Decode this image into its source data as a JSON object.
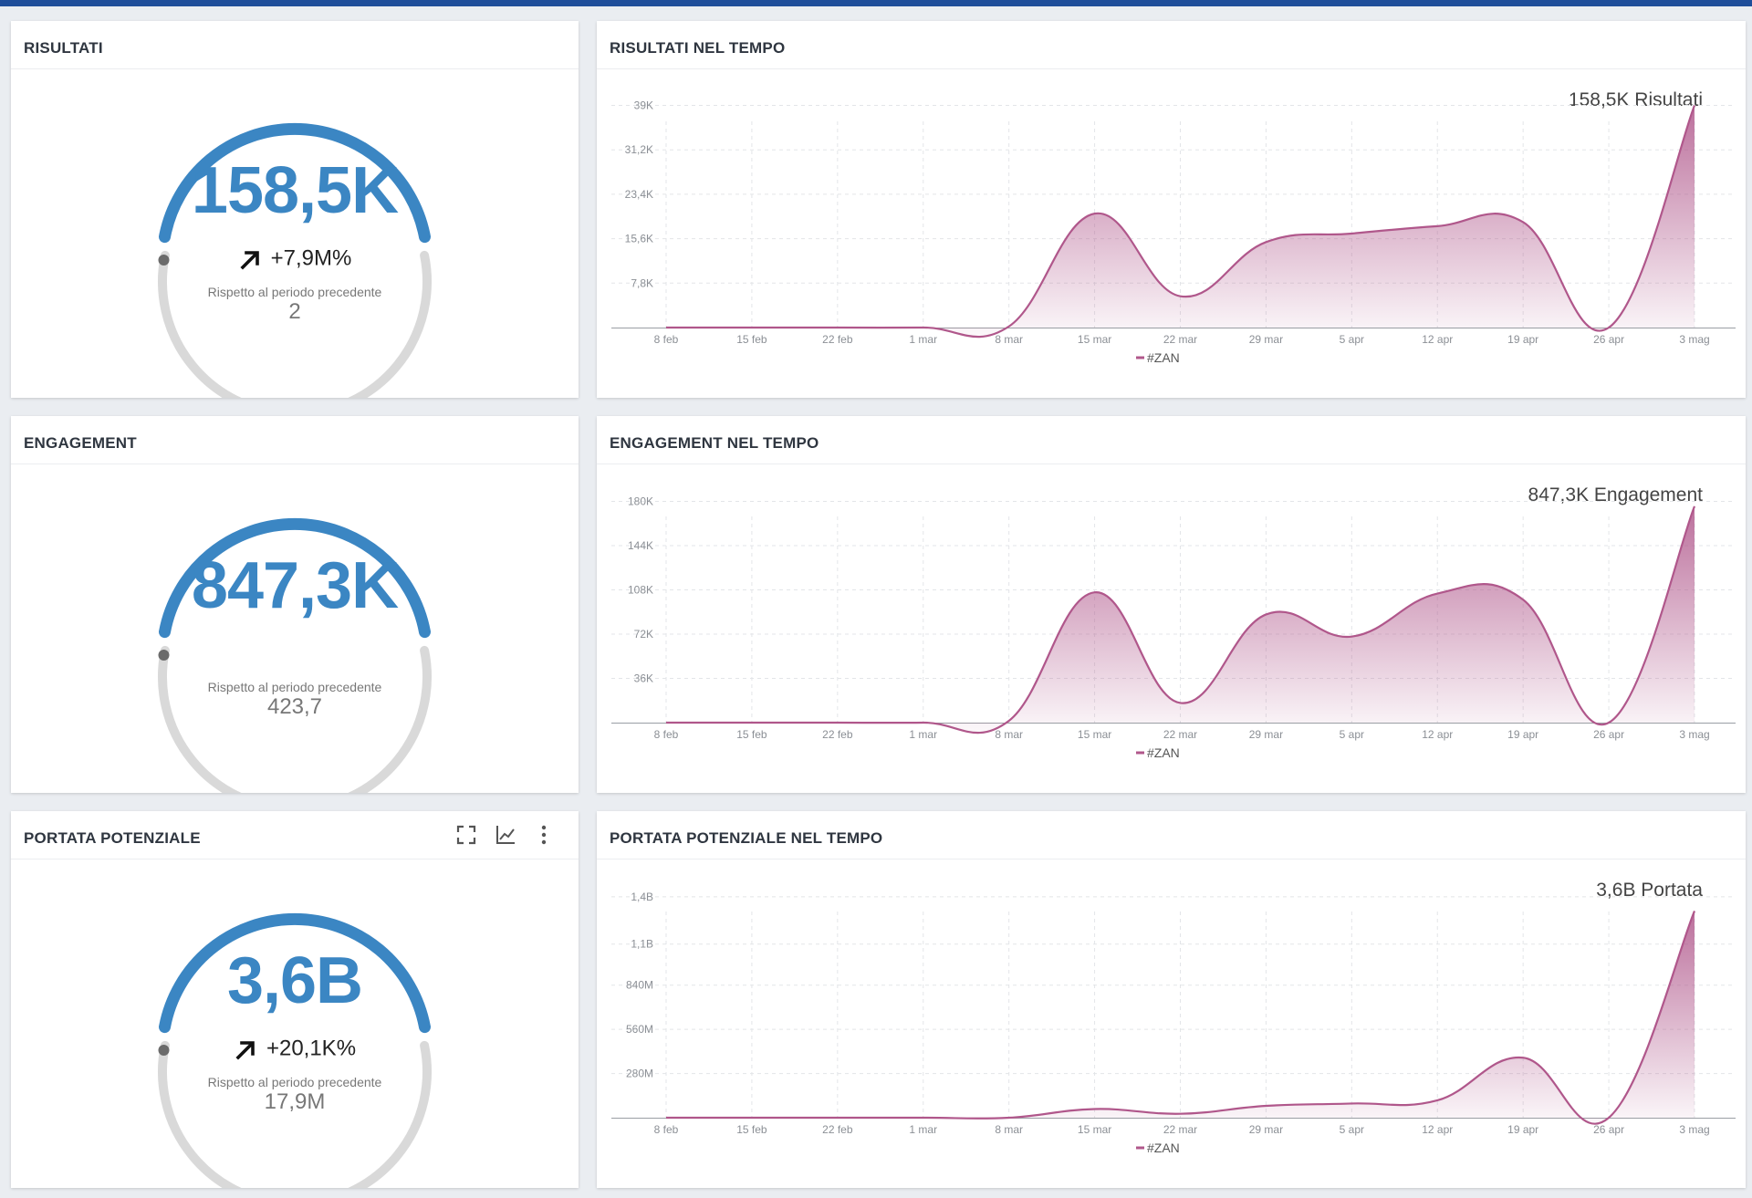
{
  "colors": {
    "accent": "#3b86c3",
    "track": "#d9d9d9",
    "series": "#b0578b",
    "topbar": "#1f4e9a"
  },
  "kpis": [
    {
      "title": "RISULTATI",
      "value": "158,5K",
      "delta": "+7,9M%",
      "delta_icon": "arrow-up-right-icon",
      "compare_label": "Rispetto al periodo precedente",
      "compare_value": "2"
    },
    {
      "title": "ENGAGEMENT",
      "value": "847,3K",
      "delta": "",
      "delta_icon": "",
      "compare_label": "Rispetto al periodo precedente",
      "compare_value": "423,7"
    },
    {
      "title": "PORTATA POTENZIALE",
      "value": "3,6B",
      "delta": "+20,1K%",
      "delta_icon": "arrow-up-right-icon",
      "compare_label": "Rispetto al periodo precedente",
      "compare_value": "17,9M",
      "tools": [
        "fullscreen-icon",
        "line-chart-icon",
        "more-vertical-icon"
      ]
    }
  ],
  "charts": [
    {
      "title": "RISULTATI NEL TEMPO",
      "total_label": "158,5K Risultati"
    },
    {
      "title": "ENGAGEMENT NEL TEMPO",
      "total_label": "847,3K Engagement"
    },
    {
      "title": "PORTATA POTENZIALE NEL TEMPO",
      "total_label": "3,6B Portata"
    }
  ],
  "chart_data": [
    {
      "type": "area",
      "title": "",
      "x": [
        "8 feb",
        "15 feb",
        "22 feb",
        "1 mar",
        "8 mar",
        "15 mar",
        "22 mar",
        "29 mar",
        "5 apr",
        "12 apr",
        "19 apr",
        "26 apr",
        "3 mag"
      ],
      "yticks": [
        7800,
        15600,
        23400,
        31200,
        39000
      ],
      "ytick_labels": [
        "7,8K",
        "15,6K",
        "23,4K",
        "31,2K",
        "39K"
      ],
      "ylim": [
        0,
        41000
      ],
      "series": [
        {
          "name": "#ZAN",
          "values": [
            0,
            0,
            0,
            0,
            200,
            20000,
            5500,
            15000,
            16500,
            17800,
            18500,
            0,
            39000
          ]
        }
      ],
      "grid": true,
      "legend": "bottom-center"
    },
    {
      "type": "area",
      "title": "",
      "x": [
        "8 feb",
        "15 feb",
        "22 feb",
        "1 mar",
        "8 mar",
        "15 mar",
        "22 mar",
        "29 mar",
        "5 apr",
        "12 apr",
        "19 apr",
        "26 apr",
        "3 mag"
      ],
      "yticks": [
        36000,
        72000,
        108000,
        144000,
        180000
      ],
      "ytick_labels": [
        "36K",
        "72K",
        "108K",
        "144K",
        "180K"
      ],
      "ylim": [
        0,
        190000
      ],
      "series": [
        {
          "name": "#ZAN",
          "values": [
            0,
            0,
            0,
            0,
            1500,
            106000,
            16000,
            88000,
            70000,
            105000,
            100000,
            0,
            176000
          ]
        }
      ],
      "grid": true,
      "legend": "bottom-center"
    },
    {
      "type": "area",
      "title": "",
      "x": [
        "8 feb",
        "15 feb",
        "22 feb",
        "1 mar",
        "8 mar",
        "15 mar",
        "22 mar",
        "29 mar",
        "5 apr",
        "12 apr",
        "19 apr",
        "26 apr",
        "3 mag"
      ],
      "yticks": [
        280000000,
        560000000,
        840000000,
        1100000000,
        1400000000
      ],
      "ytick_labels": [
        "280M",
        "560M",
        "840M",
        "1,1B",
        "1,4B"
      ],
      "ylim": [
        0,
        1480000000
      ],
      "series": [
        {
          "name": "#ZAN",
          "values": [
            0,
            0,
            0,
            0,
            0,
            55000000,
            25000000,
            75000000,
            90000000,
            110000000,
            380000000,
            0,
            1310000000
          ]
        }
      ],
      "grid": true,
      "legend": "bottom-center"
    }
  ]
}
